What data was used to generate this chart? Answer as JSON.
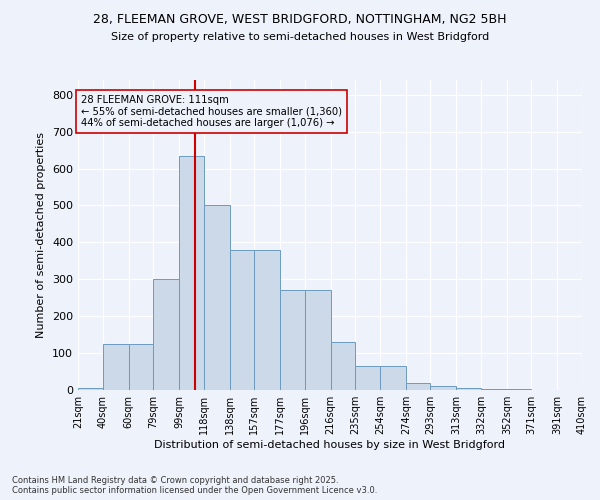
{
  "title1": "28, FLEEMAN GROVE, WEST BRIDGFORD, NOTTINGHAM, NG2 5BH",
  "title2": "Size of property relative to semi-detached houses in West Bridgford",
  "xlabel": "Distribution of semi-detached houses by size in West Bridgford",
  "ylabel": "Number of semi-detached properties",
  "footer": "Contains HM Land Registry data © Crown copyright and database right 2025.\nContains public sector information licensed under the Open Government Licence v3.0.",
  "bin_labels": [
    "21sqm",
    "40sqm",
    "60sqm",
    "79sqm",
    "99sqm",
    "118sqm",
    "138sqm",
    "157sqm",
    "177sqm",
    "196sqm",
    "216sqm",
    "235sqm",
    "254sqm",
    "274sqm",
    "293sqm",
    "313sqm",
    "332sqm",
    "352sqm",
    "371sqm",
    "391sqm",
    "410sqm"
  ],
  "bar_values": [
    5,
    125,
    125,
    300,
    635,
    500,
    380,
    380,
    270,
    270,
    130,
    65,
    65,
    20,
    10,
    5,
    3,
    2,
    1,
    0
  ],
  "bin_edges": [
    21,
    40,
    60,
    79,
    99,
    118,
    138,
    157,
    177,
    196,
    216,
    235,
    254,
    274,
    293,
    313,
    332,
    352,
    371,
    391,
    410
  ],
  "property_size": 111,
  "property_label": "28 FLEEMAN GROVE: 111sqm",
  "pct_smaller": 55,
  "pct_larger": 44,
  "n_smaller": 1360,
  "n_larger": 1076,
  "bar_color": "#ccd9e8",
  "bar_edge_color": "#6b9bbf",
  "vline_color": "#cc0000",
  "background_color": "#eef2fb",
  "grid_color": "#ffffff",
  "ylim": [
    0,
    840
  ],
  "yticks": [
    0,
    100,
    200,
    300,
    400,
    500,
    600,
    700,
    800
  ]
}
